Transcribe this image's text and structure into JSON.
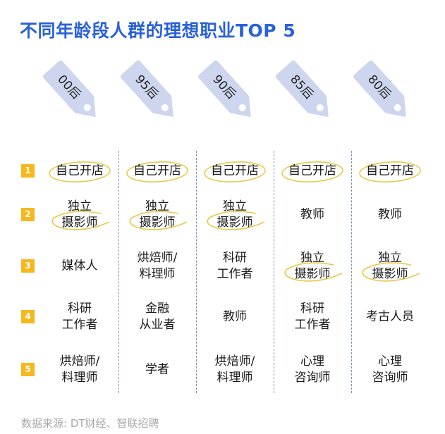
{
  "title": "不同年龄段人群的理想职业TOP 5",
  "source": "数据来源: DT财经、智联招聘",
  "colors": {
    "title": "#2a62d6",
    "tag": "#cdd6ee",
    "rank": "#f6b81c",
    "highlight": "#e8c94a"
  },
  "chart_data": {
    "type": "table",
    "columns": [
      "00后",
      "95后",
      "90后",
      "85后",
      "80后"
    ],
    "ranks": [
      "1",
      "2",
      "3",
      "4",
      "5"
    ],
    "rows": [
      [
        "自己开店",
        "自己开店",
        "自己开店",
        "自己开店",
        "自己开店"
      ],
      [
        "独立\n摄影师",
        "独立\n摄影师",
        "独立\n摄影师",
        "教师",
        "教师"
      ],
      [
        "媒体人",
        "烘焙师/\n料理师",
        "科研\n工作者",
        "独立\n摄影师",
        "独立\n摄影师"
      ],
      [
        "科研\n工作者",
        "金融\n从业者",
        "教师",
        "科研\n工作者",
        "考古人员"
      ],
      [
        "烘焙师/\n料理师",
        "学者",
        "烘焙师/\n料理师",
        "心理\n咨询师",
        "心理\n咨询师"
      ]
    ],
    "highlighted": [
      "自己开店",
      "独立\n摄影师"
    ]
  }
}
